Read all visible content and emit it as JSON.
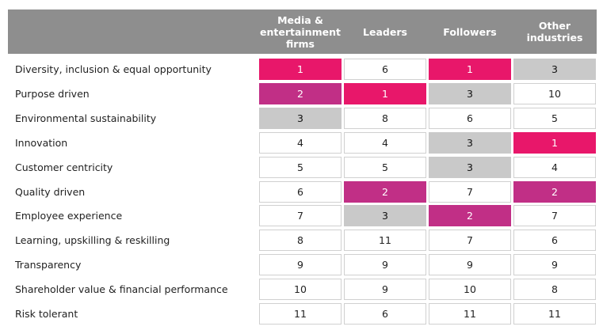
{
  "chart_data": {
    "type": "table",
    "title": "",
    "columns": [
      "Media & entertainment firms",
      "Leaders",
      "Followers",
      "Other industries"
    ],
    "column_labels_display": [
      "Media &\nentertainment\nfirms",
      "Leaders",
      "Followers",
      "Other\nindustries"
    ],
    "rows": [
      {
        "label": "Diversity, inclusion & equal opportunity",
        "values": [
          1,
          6,
          1,
          3
        ]
      },
      {
        "label": "Purpose driven",
        "values": [
          2,
          1,
          3,
          10
        ]
      },
      {
        "label": "Environmental sustainability",
        "values": [
          3,
          8,
          6,
          5
        ]
      },
      {
        "label": "Innovation",
        "values": [
          4,
          4,
          3,
          1
        ]
      },
      {
        "label": "Customer centricity",
        "values": [
          5,
          5,
          3,
          4
        ]
      },
      {
        "label": "Quality driven",
        "values": [
          6,
          2,
          7,
          2
        ]
      },
      {
        "label": "Employee experience",
        "values": [
          7,
          3,
          2,
          7
        ]
      },
      {
        "label": "Learning, upskilling & reskilling",
        "values": [
          8,
          11,
          7,
          6
        ]
      },
      {
        "label": "Transparency",
        "values": [
          9,
          9,
          9,
          9
        ]
      },
      {
        "label": "Shareholder value & financial performance",
        "values": [
          10,
          9,
          10,
          8
        ]
      },
      {
        "label": "Risk tolerant",
        "values": [
          11,
          6,
          11,
          11
        ]
      }
    ],
    "highlight_colors": {
      "rank_1": "#e8176a",
      "rank_2": "#c12f86",
      "rank_3": "#c9c9c9"
    },
    "header_background": "#8e8e8e"
  }
}
